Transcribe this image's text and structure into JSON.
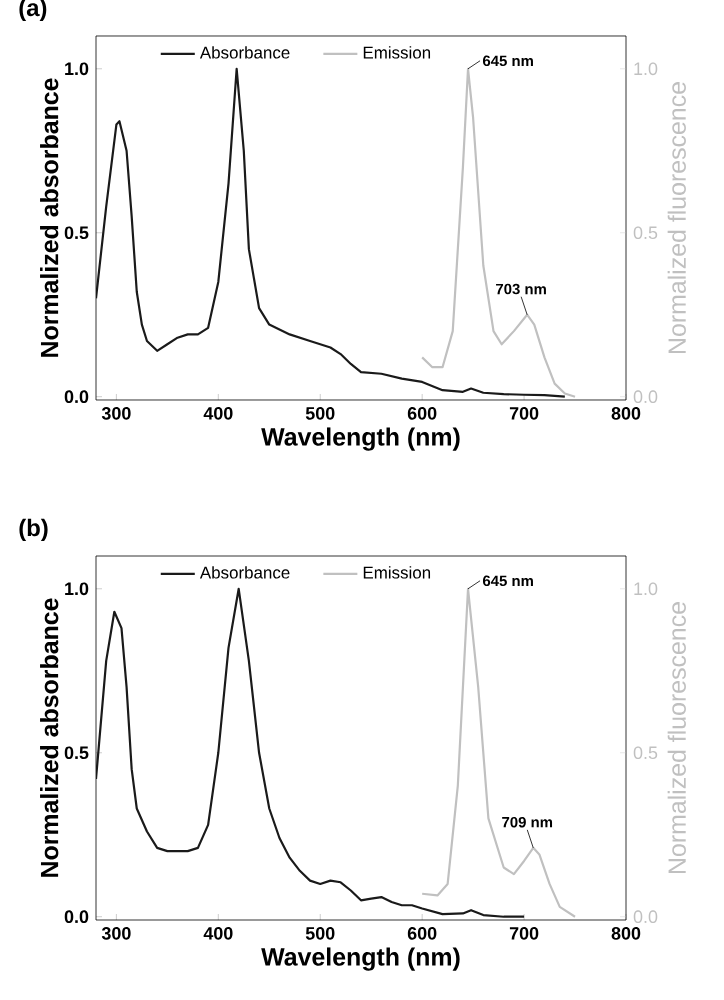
{
  "chart_data": [
    {
      "type": "line",
      "title": "(a)",
      "xlabel": "Wavelength (nm)",
      "ylabel": "Normalized absorbance",
      "y2label": "Normalized fluorescence",
      "xlim": [
        280,
        800
      ],
      "xticks": [
        300,
        400,
        500,
        600,
        700,
        800
      ],
      "ylim": [
        -0.01,
        1.1
      ],
      "yticks": [
        {
          "value": 0,
          "label": "0.0"
        },
        {
          "value": 0.5,
          "label": "0.5"
        },
        {
          "value": 1,
          "label": "1.0"
        }
      ],
      "y2lim": [
        -0.01,
        1.1
      ],
      "y2ticks": [
        {
          "value": 0,
          "label": "0.0"
        },
        {
          "value": 0.5,
          "label": "0.5"
        },
        {
          "value": 1,
          "label": "1.0"
        }
      ],
      "legend": "top",
      "grid": false,
      "series": [
        {
          "name": "Absorbance",
          "color": "#1a1a1a",
          "x": [
            280,
            290,
            300,
            303,
            310,
            315,
            320,
            325,
            330,
            340,
            350,
            360,
            370,
            380,
            390,
            400,
            410,
            418,
            425,
            430,
            440,
            450,
            470,
            490,
            510,
            520,
            530,
            540,
            560,
            580,
            600,
            620,
            640,
            648,
            660,
            680,
            700,
            720,
            740
          ],
          "values": [
            0.3,
            0.58,
            0.83,
            0.84,
            0.75,
            0.55,
            0.32,
            0.22,
            0.17,
            0.14,
            0.16,
            0.18,
            0.19,
            0.19,
            0.21,
            0.35,
            0.65,
            1.0,
            0.75,
            0.45,
            0.27,
            0.22,
            0.19,
            0.17,
            0.15,
            0.13,
            0.1,
            0.075,
            0.07,
            0.055,
            0.045,
            0.02,
            0.015,
            0.025,
            0.012,
            0.008,
            0.006,
            0.005,
            0.0
          ]
        },
        {
          "name": "Emission",
          "color": "#c0c0c0",
          "axis": "y2",
          "x": [
            600,
            610,
            620,
            630,
            640,
            645,
            650,
            660,
            670,
            678,
            690,
            703,
            710,
            720,
            730,
            740,
            750
          ],
          "values": [
            0.12,
            0.09,
            0.09,
            0.2,
            0.7,
            1.0,
            0.85,
            0.4,
            0.2,
            0.16,
            0.2,
            0.25,
            0.22,
            0.12,
            0.04,
            0.01,
            0.0
          ]
        }
      ],
      "annotations": [
        {
          "text": "645 nm",
          "x": 645,
          "y": 1.0
        },
        {
          "text": "703 nm",
          "x": 703,
          "y": 0.25
        }
      ]
    },
    {
      "type": "line",
      "title": "(b)",
      "xlabel": "Wavelength (nm)",
      "ylabel": "Normalized absorbance",
      "y2label": "Normalized fluorescence",
      "xlim": [
        280,
        800
      ],
      "xticks": [
        300,
        400,
        500,
        600,
        700,
        800
      ],
      "ylim": [
        -0.01,
        1.1
      ],
      "yticks": [
        {
          "value": 0,
          "label": "0.0"
        },
        {
          "value": 0.5,
          "label": "0.5"
        },
        {
          "value": 1,
          "label": "1.0"
        }
      ],
      "y2lim": [
        -0.01,
        1.1
      ],
      "y2ticks": [
        {
          "value": 0,
          "label": "0.0"
        },
        {
          "value": 0.5,
          "label": "0.5"
        },
        {
          "value": 1,
          "label": "1.0"
        }
      ],
      "legend": "top",
      "grid": false,
      "series": [
        {
          "name": "Absorbance",
          "color": "#1a1a1a",
          "x": [
            280,
            290,
            298,
            305,
            310,
            315,
            320,
            330,
            340,
            350,
            370,
            380,
            390,
            400,
            410,
            420,
            430,
            440,
            450,
            460,
            470,
            480,
            490,
            500,
            510,
            520,
            530,
            540,
            550,
            560,
            570,
            580,
            590,
            600,
            620,
            640,
            648,
            660,
            680,
            700
          ],
          "values": [
            0.42,
            0.78,
            0.93,
            0.88,
            0.7,
            0.45,
            0.33,
            0.26,
            0.21,
            0.2,
            0.2,
            0.21,
            0.28,
            0.5,
            0.82,
            1.0,
            0.78,
            0.5,
            0.33,
            0.24,
            0.18,
            0.14,
            0.11,
            0.1,
            0.11,
            0.105,
            0.08,
            0.05,
            0.055,
            0.06,
            0.045,
            0.035,
            0.035,
            0.025,
            0.008,
            0.01,
            0.02,
            0.005,
            0.0,
            0.0
          ]
        },
        {
          "name": "Emission",
          "color": "#c0c0c0",
          "axis": "y2",
          "x": [
            600,
            615,
            625,
            635,
            645,
            655,
            665,
            680,
            690,
            700,
            709,
            715,
            725,
            735,
            750
          ],
          "values": [
            0.07,
            0.065,
            0.1,
            0.4,
            1.0,
            0.7,
            0.3,
            0.15,
            0.13,
            0.17,
            0.21,
            0.19,
            0.1,
            0.03,
            0.0
          ]
        }
      ],
      "annotations": [
        {
          "text": "645 nm",
          "x": 645,
          "y": 1.0
        },
        {
          "text": "709 nm",
          "x": 709,
          "y": 0.21
        }
      ]
    }
  ]
}
